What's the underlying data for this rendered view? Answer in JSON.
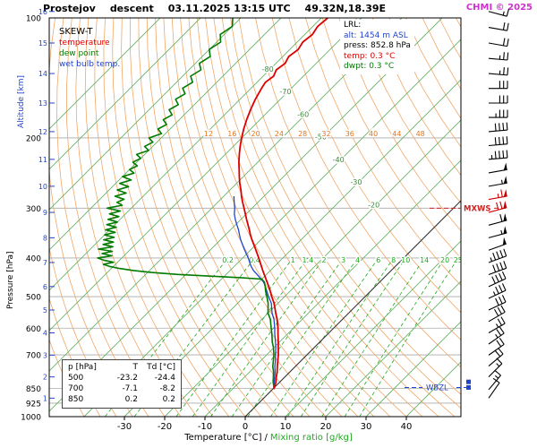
{
  "title": {
    "station": "Prostejov",
    "sounding_type": "descent",
    "datetime": "03.11.2025 13:15 UTC",
    "coords": "49.32N,18.39E"
  },
  "watermark": {
    "text": "CHMI © 2025"
  },
  "legend": {
    "heading": "SKEW-T",
    "items": [
      {
        "label": "temperature",
        "color": "#dd0000"
      },
      {
        "label": "dew point",
        "color": "#007a00"
      },
      {
        "label": "wet bulb temp.",
        "color": "#2244cc"
      }
    ]
  },
  "info_panel": {
    "heading": "LRL:",
    "lines": [
      {
        "text": "alt: 1454 m ASL",
        "color": "#2244cc"
      },
      {
        "text": "press: 852.8 hPa",
        "color": "#000000"
      },
      {
        "text": "temp: 0.3 °C",
        "color": "#dd0000"
      },
      {
        "text": "dwpt: 0.3 °C",
        "color": "#007a00"
      }
    ]
  },
  "table": {
    "headers": [
      "p [hPa]",
      "T",
      "Td [°C]"
    ],
    "rows": [
      [
        "500",
        "-23.2",
        "-24.4"
      ],
      [
        "700",
        "-7.1",
        "-8.2"
      ],
      [
        "850",
        "0.2",
        "0.2"
      ]
    ]
  },
  "captions": {
    "separator": "/"
  },
  "colors": {
    "temperature": "#dd0000",
    "dew_point": "#007a00",
    "wet_bulb": "#2244cc",
    "isotherm": "#6ab06a",
    "isotherm_zero": "#333333",
    "isobar": "#aaaaaa",
    "adiabat": "#f0a868",
    "adiabat_label": "#e07820",
    "mixing": "#1faa1f",
    "altitude": "#2244cc",
    "mxws": "#cc2222",
    "wbzl": "#2244cc",
    "barb": "#000000",
    "barb_max": "#cc0000"
  },
  "chart_data": {
    "type": "skewt",
    "pressure_axis": {
      "label": "Pressure [hPa]",
      "scale": "log",
      "range": [
        100,
        1000
      ],
      "ticks": [
        100,
        200,
        300,
        400,
        500,
        600,
        700,
        850,
        925,
        1000
      ]
    },
    "altitude_axis": {
      "label": "Altitude [km]",
      "ticks_km": [
        1,
        2,
        3,
        4,
        5,
        6,
        7,
        8,
        9,
        10,
        11,
        12,
        13,
        14,
        15,
        16
      ]
    },
    "temp_axis": {
      "label": "Temperature [°C]",
      "ticks": [
        -30,
        -20,
        -10,
        0,
        10,
        20,
        30,
        40
      ]
    },
    "isotherms": {
      "min": -120,
      "max": 40,
      "step": 10,
      "labeled": [
        -80,
        -70,
        -60,
        -50,
        -40,
        -30,
        -20
      ]
    },
    "dry_adiabats": {
      "label_values_c": [
        12,
        16,
        20,
        24,
        28,
        32,
        36,
        40,
        44,
        48
      ]
    },
    "mixing_ratio": {
      "label": "Mixing ratio [g/kg]",
      "values_g_kg": [
        0.2,
        0.4,
        1,
        1.4,
        2,
        3,
        4,
        6,
        8,
        10,
        14,
        20,
        25
      ]
    },
    "markers": {
      "mxws": {
        "label": "MXWS",
        "pressure_hpa": 300
      },
      "wbzl": {
        "label": "WBZL",
        "pressure_hpa": 845
      },
      "level_squares_hpa": [
        845,
        818
      ]
    },
    "temperature_profile": [
      [
        852.8,
        0.3
      ],
      [
        850,
        0.2
      ],
      [
        820,
        -0.9
      ],
      [
        800,
        -1.9
      ],
      [
        770,
        -3.3
      ],
      [
        750,
        -4.4
      ],
      [
        720,
        -6.0
      ],
      [
        700,
        -7.1
      ],
      [
        670,
        -9.0
      ],
      [
        650,
        -10.3
      ],
      [
        620,
        -12.4
      ],
      [
        600,
        -13.8
      ],
      [
        570,
        -16.2
      ],
      [
        550,
        -18.1
      ],
      [
        520,
        -20.9
      ],
      [
        500,
        -23.2
      ],
      [
        480,
        -25.4
      ],
      [
        460,
        -27.9
      ],
      [
        450,
        -29.2
      ],
      [
        430,
        -31.9
      ],
      [
        410,
        -34.6
      ],
      [
        400,
        -36.0
      ],
      [
        380,
        -39.0
      ],
      [
        360,
        -42.2
      ],
      [
        350,
        -43.8
      ],
      [
        340,
        -45.3
      ],
      [
        320,
        -48.6
      ],
      [
        300,
        -52.0
      ],
      [
        290,
        -53.8
      ],
      [
        280,
        -55.6
      ],
      [
        270,
        -57.3
      ],
      [
        260,
        -59.2
      ],
      [
        250,
        -61.0
      ],
      [
        240,
        -62.8
      ],
      [
        230,
        -64.7
      ],
      [
        220,
        -66.5
      ],
      [
        210,
        -68.3
      ],
      [
        200,
        -70.0
      ],
      [
        190,
        -71.7
      ],
      [
        180,
        -73.3
      ],
      [
        170,
        -74.8
      ],
      [
        160,
        -76.2
      ],
      [
        150,
        -77.4
      ],
      [
        145,
        -77.9
      ],
      [
        140,
        -77.4
      ],
      [
        135,
        -78.3
      ],
      [
        130,
        -77.7
      ],
      [
        125,
        -78.5
      ],
      [
        120,
        -77.9
      ],
      [
        115,
        -78.6
      ],
      [
        110,
        -78.1
      ],
      [
        105,
        -78.8
      ],
      [
        100,
        -78.4
      ]
    ],
    "dewpoint_profile": [
      [
        852.8,
        0.3
      ],
      [
        850,
        0.2
      ],
      [
        820,
        -1.6
      ],
      [
        800,
        -2.6
      ],
      [
        770,
        -4.2
      ],
      [
        750,
        -5.5
      ],
      [
        720,
        -7.1
      ],
      [
        700,
        -8.2
      ],
      [
        670,
        -10.2
      ],
      [
        650,
        -11.8
      ],
      [
        620,
        -13.9
      ],
      [
        600,
        -15.5
      ],
      [
        570,
        -17.9
      ],
      [
        550,
        -20.0
      ],
      [
        520,
        -22.4
      ],
      [
        500,
        -24.4
      ],
      [
        485,
        -26.0
      ],
      [
        470,
        -27.5
      ],
      [
        460,
        -28.6
      ],
      [
        452,
        -30.0
      ],
      [
        448,
        -36.0
      ],
      [
        444,
        -44.0
      ],
      [
        440,
        -52.0
      ],
      [
        435,
        -59.0
      ],
      [
        430,
        -64.0
      ],
      [
        425,
        -68.0
      ],
      [
        420,
        -71.0
      ],
      [
        415,
        -73.0
      ],
      [
        410,
        -71.0
      ],
      [
        405,
        -74.0
      ],
      [
        400,
        -76.0
      ],
      [
        395,
        -73.0
      ],
      [
        390,
        -76.0
      ],
      [
        385,
        -74.0
      ],
      [
        380,
        -78.0
      ],
      [
        375,
        -75.0
      ],
      [
        370,
        -78.0
      ],
      [
        365,
        -76.0
      ],
      [
        360,
        -79.0
      ],
      [
        355,
        -77.0
      ],
      [
        350,
        -80.0
      ],
      [
        345,
        -78.0
      ],
      [
        340,
        -81.0
      ],
      [
        335,
        -79.0
      ],
      [
        330,
        -82.0
      ],
      [
        325,
        -80.0
      ],
      [
        320,
        -83.0
      ],
      [
        315,
        -81.0
      ],
      [
        310,
        -84.0
      ],
      [
        305,
        -82.0
      ],
      [
        300,
        -86.0
      ],
      [
        295,
        -83.0
      ],
      [
        290,
        -85.0
      ],
      [
        285,
        -84.0
      ],
      [
        280,
        -87.0
      ],
      [
        275,
        -85.0
      ],
      [
        270,
        -88.0
      ],
      [
        265,
        -86.0
      ],
      [
        260,
        -89.0
      ],
      [
        255,
        -87.0
      ],
      [
        250,
        -90.0
      ],
      [
        245,
        -88.0
      ],
      [
        240,
        -90.0
      ],
      [
        235,
        -89.0
      ],
      [
        230,
        -91.0
      ],
      [
        225,
        -90.0
      ],
      [
        220,
        -92.0
      ],
      [
        215,
        -90.0
      ],
      [
        210,
        -92.0
      ],
      [
        205,
        -91.0
      ],
      [
        200,
        -93.0
      ],
      [
        195,
        -91.0
      ],
      [
        190,
        -93.0
      ],
      [
        185,
        -92.0
      ],
      [
        180,
        -94.0
      ],
      [
        175,
        -93.0
      ],
      [
        170,
        -95.0
      ],
      [
        165,
        -94.0
      ],
      [
        160,
        -96.0
      ],
      [
        155,
        -95.0
      ],
      [
        150,
        -97.0
      ],
      [
        145,
        -96.0
      ],
      [
        140,
        -98.0
      ],
      [
        135,
        -97.0
      ],
      [
        130,
        -99.0
      ],
      [
        125,
        -98.0
      ],
      [
        120,
        -100.0
      ],
      [
        115,
        -99.0
      ],
      [
        110,
        -101.0
      ],
      [
        105,
        -100.0
      ],
      [
        100,
        -102.0
      ]
    ],
    "wetbulb_profile": [
      [
        852.8,
        0.2
      ],
      [
        820,
        -1.3
      ],
      [
        800,
        -2.3
      ],
      [
        770,
        -3.8
      ],
      [
        750,
        -5.0
      ],
      [
        720,
        -6.6
      ],
      [
        700,
        -7.8
      ],
      [
        670,
        -9.6
      ],
      [
        650,
        -11.0
      ],
      [
        620,
        -13.2
      ],
      [
        600,
        -14.6
      ],
      [
        570,
        -17.0
      ],
      [
        550,
        -19.0
      ],
      [
        520,
        -21.6
      ],
      [
        500,
        -24.0
      ],
      [
        485,
        -25.7
      ],
      [
        470,
        -27.5
      ],
      [
        460,
        -28.8
      ],
      [
        450,
        -30.5
      ],
      [
        440,
        -32.3
      ],
      [
        430,
        -34.2
      ],
      [
        420,
        -35.8
      ],
      [
        410,
        -37.2
      ],
      [
        400,
        -38.6
      ],
      [
        390,
        -40.2
      ],
      [
        380,
        -41.8
      ],
      [
        370,
        -43.4
      ],
      [
        360,
        -45.0
      ],
      [
        350,
        -46.5
      ],
      [
        340,
        -48.0
      ],
      [
        330,
        -49.7
      ],
      [
        320,
        -51.4
      ],
      [
        310,
        -53.0
      ],
      [
        300,
        -54.3
      ],
      [
        290,
        -55.9
      ],
      [
        280,
        -57.5
      ]
    ],
    "wind_barbs": [
      {
        "alt_km": 1.0,
        "dir": 215,
        "kt": 10
      },
      {
        "alt_km": 1.4,
        "dir": 220,
        "kt": 15
      },
      {
        "alt_km": 2.0,
        "dir": 225,
        "kt": 15
      },
      {
        "alt_km": 2.5,
        "dir": 230,
        "kt": 20
      },
      {
        "alt_km": 3.0,
        "dir": 235,
        "kt": 20
      },
      {
        "alt_km": 3.5,
        "dir": 235,
        "kt": 25
      },
      {
        "alt_km": 4.0,
        "dir": 240,
        "kt": 25
      },
      {
        "alt_km": 4.5,
        "dir": 240,
        "kt": 30
      },
      {
        "alt_km": 5.0,
        "dir": 245,
        "kt": 30
      },
      {
        "alt_km": 5.5,
        "dir": 245,
        "kt": 35
      },
      {
        "alt_km": 6.0,
        "dir": 245,
        "kt": 40
      },
      {
        "alt_km": 6.5,
        "dir": 250,
        "kt": 40
      },
      {
        "alt_km": 7.0,
        "dir": 250,
        "kt": 45
      },
      {
        "alt_km": 7.5,
        "dir": 250,
        "kt": 50
      },
      {
        "alt_km": 8.0,
        "dir": 255,
        "kt": 55
      },
      {
        "alt_km": 8.5,
        "dir": 255,
        "kt": 60
      },
      {
        "alt_km": 9.0,
        "dir": 255,
        "kt": 70,
        "max_wind": true
      },
      {
        "alt_km": 9.5,
        "dir": 260,
        "kt": 65,
        "max_wind": true
      },
      {
        "alt_km": 10.0,
        "dir": 260,
        "kt": 55
      },
      {
        "alt_km": 10.5,
        "dir": 260,
        "kt": 50
      },
      {
        "alt_km": 11.0,
        "dir": 265,
        "kt": 45
      },
      {
        "alt_km": 11.5,
        "dir": 265,
        "kt": 40
      },
      {
        "alt_km": 12.0,
        "dir": 265,
        "kt": 40
      },
      {
        "alt_km": 12.5,
        "dir": 270,
        "kt": 35
      },
      {
        "alt_km": 13.0,
        "dir": 270,
        "kt": 30
      },
      {
        "alt_km": 13.5,
        "dir": 270,
        "kt": 30
      },
      {
        "alt_km": 14.0,
        "dir": 275,
        "kt": 25
      },
      {
        "alt_km": 14.5,
        "dir": 275,
        "kt": 25
      },
      {
        "alt_km": 15.0,
        "dir": 280,
        "kt": 20
      },
      {
        "alt_km": 15.5,
        "dir": 280,
        "kt": 20
      },
      {
        "alt_km": 16.0,
        "dir": 285,
        "kt": 15
      }
    ]
  }
}
